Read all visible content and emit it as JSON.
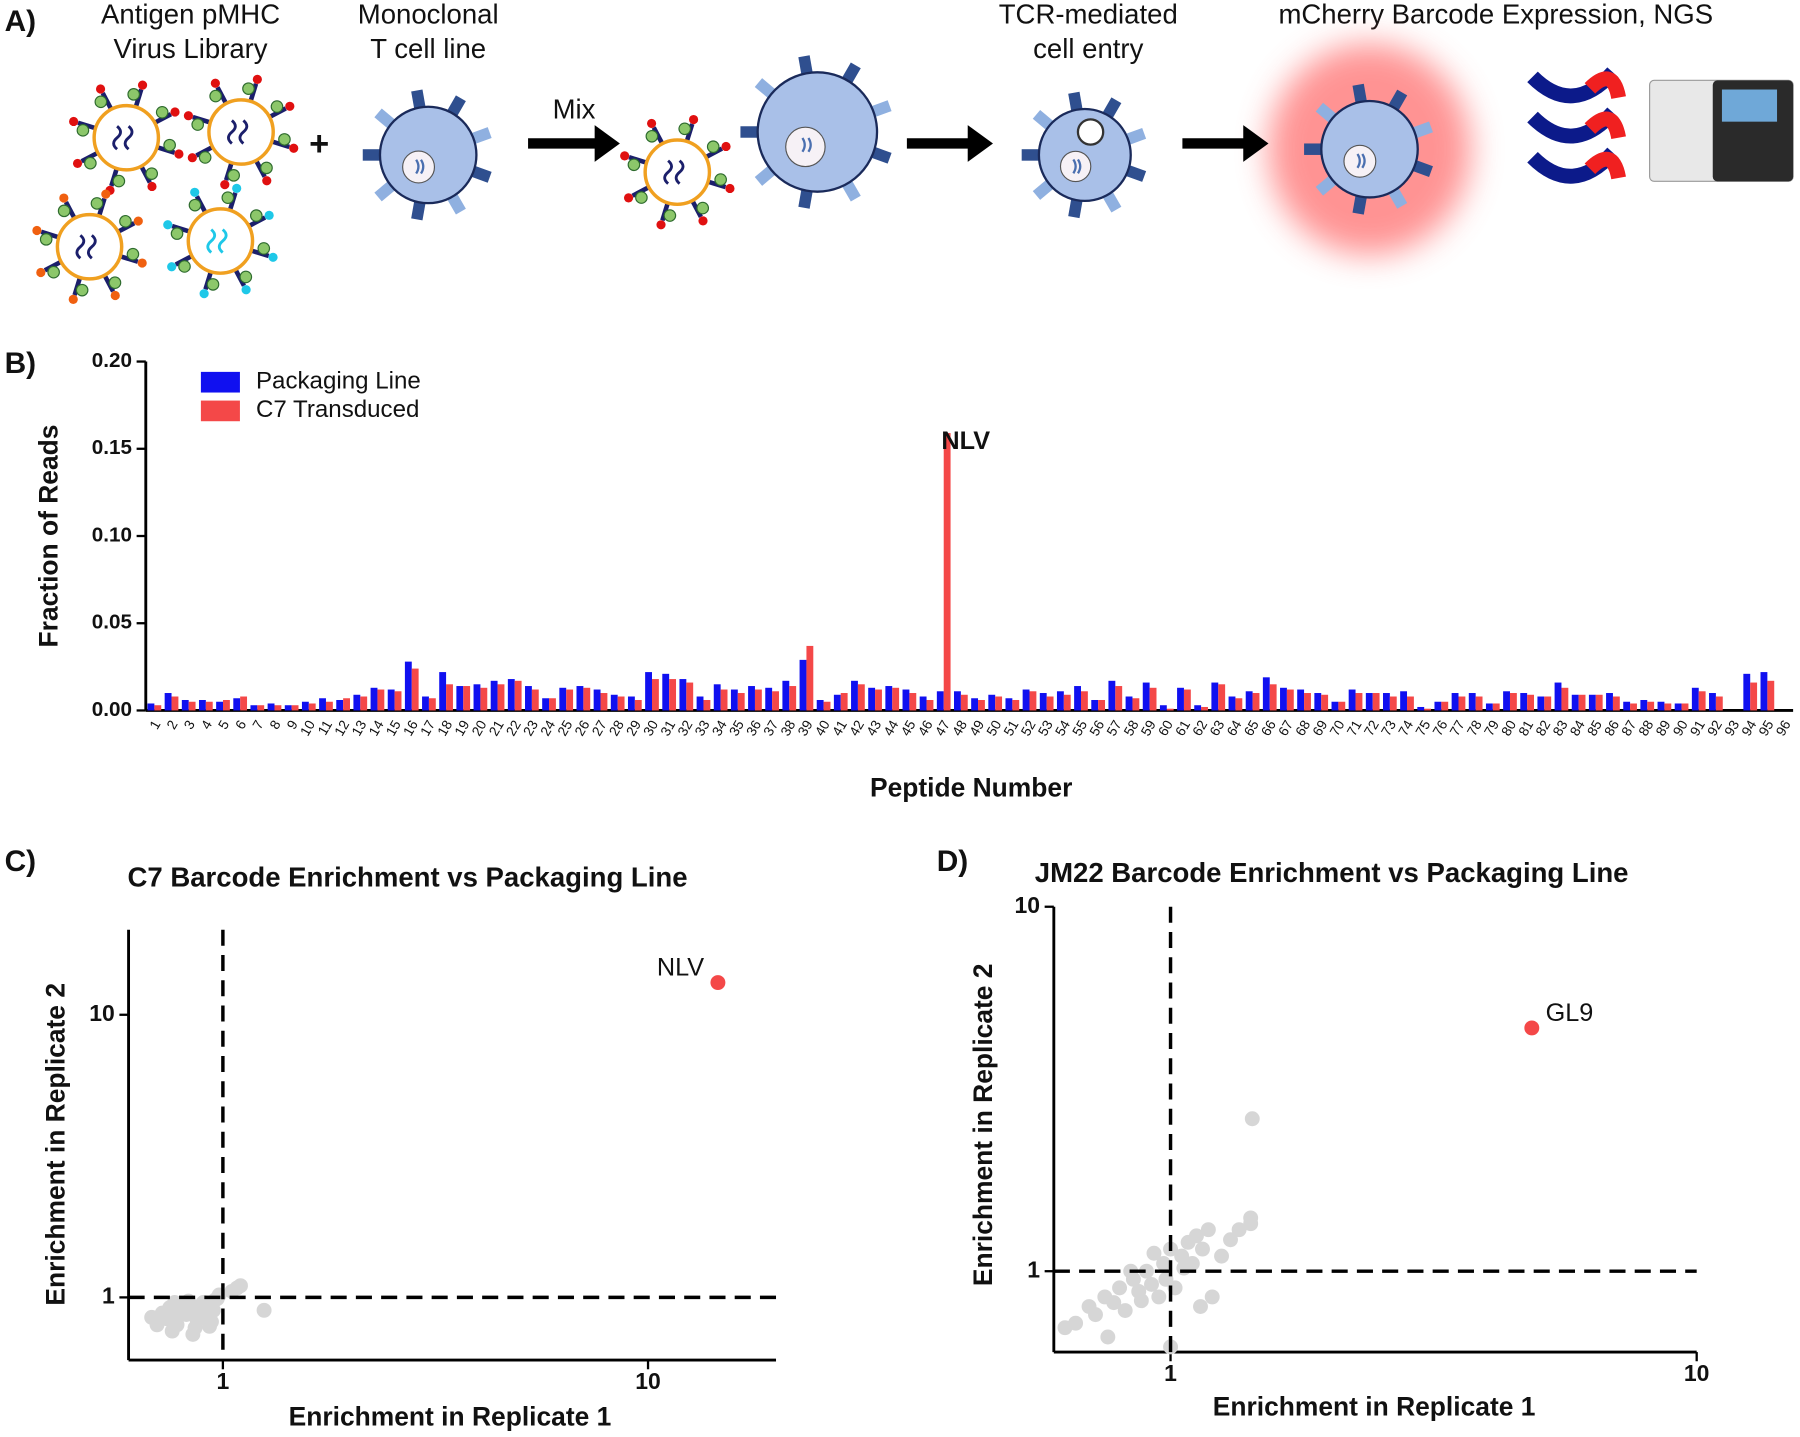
{
  "panel_a": {
    "label": "A)",
    "steps": [
      {
        "lines": [
          "Antigen pMHC",
          "Virus Library"
        ]
      },
      {
        "lines": [
          "Monoclonal",
          "T cell line"
        ]
      },
      {
        "lines": [
          "TCR-mediated",
          "cell entry"
        ]
      },
      {
        "lines": [
          "mCherry Barcode Expression, NGS"
        ]
      }
    ],
    "plus": "+",
    "mix": "Mix"
  },
  "chart_data": [
    {
      "type": "bar",
      "panel_label": "B)",
      "x_label": "Peptide Number",
      "y_label": "Fraction of Reads",
      "categories": [
        "1",
        "2",
        "3",
        "4",
        "5",
        "6",
        "7",
        "8",
        "9",
        "10",
        "11",
        "12",
        "13",
        "14",
        "15",
        "16",
        "17",
        "18",
        "19",
        "20",
        "21",
        "22",
        "23",
        "24",
        "25",
        "26",
        "27",
        "28",
        "29",
        "30",
        "31",
        "32",
        "33",
        "34",
        "35",
        "36",
        "37",
        "38",
        "39",
        "40",
        "41",
        "42",
        "43",
        "44",
        "45",
        "46",
        "47",
        "48",
        "49",
        "50",
        "51",
        "52",
        "53",
        "54",
        "55",
        "56",
        "57",
        "58",
        "59",
        "60",
        "61",
        "62",
        "63",
        "64",
        "65",
        "66",
        "67",
        "68",
        "69",
        "70",
        "71",
        "72",
        "73",
        "74",
        "75",
        "76",
        "77",
        "78",
        "79",
        "80",
        "81",
        "82",
        "83",
        "84",
        "85",
        "86",
        "87",
        "88",
        "89",
        "90",
        "91",
        "92",
        "93",
        "94",
        "95",
        "96"
      ],
      "series": [
        {
          "name": "Packaging Line",
          "color": "#1010f0",
          "values": [
            0.004,
            0.01,
            0.006,
            0.006,
            0.005,
            0.007,
            0.003,
            0.004,
            0.003,
            0.005,
            0.007,
            0.006,
            0.009,
            0.013,
            0.012,
            0.028,
            0.008,
            0.022,
            0.014,
            0.015,
            0.017,
            0.018,
            0.014,
            0.007,
            0.013,
            0.014,
            0.012,
            0.009,
            0.008,
            0.022,
            0.021,
            0.018,
            0.008,
            0.015,
            0.012,
            0.014,
            0.013,
            0.017,
            0.029,
            0.006,
            0.009,
            0.017,
            0.013,
            0.014,
            0.012,
            0.008,
            0.011,
            0.011,
            0.007,
            0.009,
            0.007,
            0.012,
            0.01,
            0.011,
            0.014,
            0.006,
            0.017,
            0.008,
            0.016,
            0.003,
            0.013,
            0.003,
            0.016,
            0.008,
            0.011,
            0.019,
            0.013,
            0.012,
            0.01,
            0.005,
            0.012,
            0.01,
            0.01,
            0.011,
            0.002,
            0.005,
            0.01,
            0.01,
            0.004,
            0.011,
            0.01,
            0.008,
            0.016,
            0.009,
            0.009,
            0.01,
            0.005,
            0.006,
            0.005,
            0.004,
            0.013,
            0.01,
            0,
            0.021,
            0.022,
            0
          ]
        },
        {
          "name": "C7 Transduced",
          "color": "#f44848",
          "values": [
            0.003,
            0.008,
            0.005,
            0.005,
            0.006,
            0.008,
            0.003,
            0.003,
            0.003,
            0.004,
            0.005,
            0.007,
            0.008,
            0.012,
            0.011,
            0.024,
            0.007,
            0.015,
            0.014,
            0.013,
            0.015,
            0.017,
            0.012,
            0.007,
            0.012,
            0.013,
            0.01,
            0.008,
            0.006,
            0.018,
            0.018,
            0.016,
            0.006,
            0.012,
            0.01,
            0.012,
            0.011,
            0.014,
            0.037,
            0.005,
            0.01,
            0.015,
            0.012,
            0.013,
            0.01,
            0.006,
            0.159,
            0.009,
            0.006,
            0.008,
            0.006,
            0.011,
            0.008,
            0.009,
            0.011,
            0.006,
            0.014,
            0.007,
            0.013,
            0.001,
            0.012,
            0.002,
            0.015,
            0.007,
            0.01,
            0.015,
            0.012,
            0.01,
            0.009,
            0.005,
            0.01,
            0.01,
            0.008,
            0.008,
            0.001,
            0.005,
            0.008,
            0.008,
            0.004,
            0.01,
            0.009,
            0.008,
            0.013,
            0.009,
            0.009,
            0.008,
            0.004,
            0.005,
            0.004,
            0.004,
            0.011,
            0.008,
            0,
            0.016,
            0.017,
            0
          ]
        }
      ],
      "annotations": [
        {
          "text": "NLV",
          "category": "47"
        }
      ],
      "ylim": [
        0,
        0.2
      ],
      "yticks": [
        {
          "value": 0,
          "label": "0.00"
        },
        0.05,
        {
          "value": 0.1,
          "label": "0.10"
        },
        0.15,
        {
          "value": 0.2,
          "label": "0.20"
        }
      ],
      "legend": "upper left"
    },
    {
      "type": "scatter",
      "panel_label": "C)",
      "title": "C7 Barcode Enrichment vs Packaging Line",
      "x_label": "Enrichment in Replicate 1",
      "y_label": "Enrichment in Replicate 2",
      "xscale": "log",
      "yscale": "log",
      "xlim": [
        0.6,
        20
      ],
      "ylim": [
        0.6,
        20
      ],
      "xticks": [
        1,
        10
      ],
      "yticks": [
        1,
        10
      ],
      "vline": 1,
      "hline": 1,
      "series": [
        {
          "color": "#d6d6d6",
          "x": [
            0.68,
            0.72,
            0.75,
            0.78,
            0.8,
            0.82,
            0.84,
            0.86,
            0.88,
            0.9,
            0.92,
            0.94,
            0.96,
            0.98,
            1.05,
            1.08,
            1.1,
            1.25,
            0.7,
            0.74,
            0.77,
            0.81,
            0.85,
            0.89,
            0.93,
            0.97,
            0.79,
            0.83,
            0.87,
            0.91,
            0.76,
            0.95
          ],
          "y": [
            0.85,
            0.88,
            0.92,
            0.8,
            0.95,
            0.87,
            0.9,
            0.78,
            0.93,
            0.96,
            0.89,
            0.82,
            0.98,
            1.02,
            1.05,
            1.08,
            1.1,
            0.9,
            0.8,
            0.84,
            0.96,
            0.91,
            0.74,
            0.86,
            0.79,
            0.99,
            0.88,
            0.97,
            0.83,
            0.93,
            0.76,
            0.9
          ]
        },
        {
          "color": "#f44848",
          "x": [
            14.6
          ],
          "y": [
            13
          ],
          "point_labels": [
            "NLV"
          ]
        }
      ]
    },
    {
      "type": "scatter",
      "panel_label": "D)",
      "title": "JM22 Barcode Enrichment vs Packaging Line",
      "x_label": "Enrichment in Replicate 1",
      "y_label": "Enrichment in Replicate 2",
      "xscale": "log",
      "yscale": "log",
      "xlim": [
        0.6,
        10
      ],
      "ylim": [
        0.6,
        10
      ],
      "xticks": [
        1,
        10
      ],
      "yticks": [
        1,
        10
      ],
      "vline": 1,
      "hline": 1,
      "series": [
        {
          "color": "#d6d6d6",
          "x": [
            0.63,
            0.66,
            0.7,
            0.72,
            0.75,
            0.78,
            0.8,
            0.82,
            0.85,
            0.87,
            0.9,
            0.92,
            0.95,
            0.97,
            1.0,
            1.02,
            1.05,
            1.08,
            1.1,
            1.12,
            1.15,
            1.18,
            1.2,
            1.25,
            1.3,
            1.35,
            1.42,
            1.42,
            1.43,
            0.88,
            0.93,
            0.98,
            1.0,
            1.06,
            1.14,
            0.76,
            0.84
          ],
          "y": [
            0.7,
            0.72,
            0.8,
            0.76,
            0.85,
            0.82,
            0.9,
            0.78,
            0.95,
            0.88,
            1.0,
            0.92,
            0.85,
            1.05,
            1.15,
            0.9,
            1.1,
            1.2,
            1.05,
            1.25,
            1.15,
            1.3,
            0.85,
            1.1,
            1.22,
            1.3,
            1.35,
            1.4,
            2.62,
            0.83,
            1.12,
            0.95,
            0.62,
            1.02,
            0.8,
            0.66,
            1.0
          ]
        },
        {
          "color": "#f44848",
          "x": [
            4.86
          ],
          "y": [
            4.65
          ],
          "point_labels": [
            "GL9"
          ]
        }
      ]
    }
  ]
}
